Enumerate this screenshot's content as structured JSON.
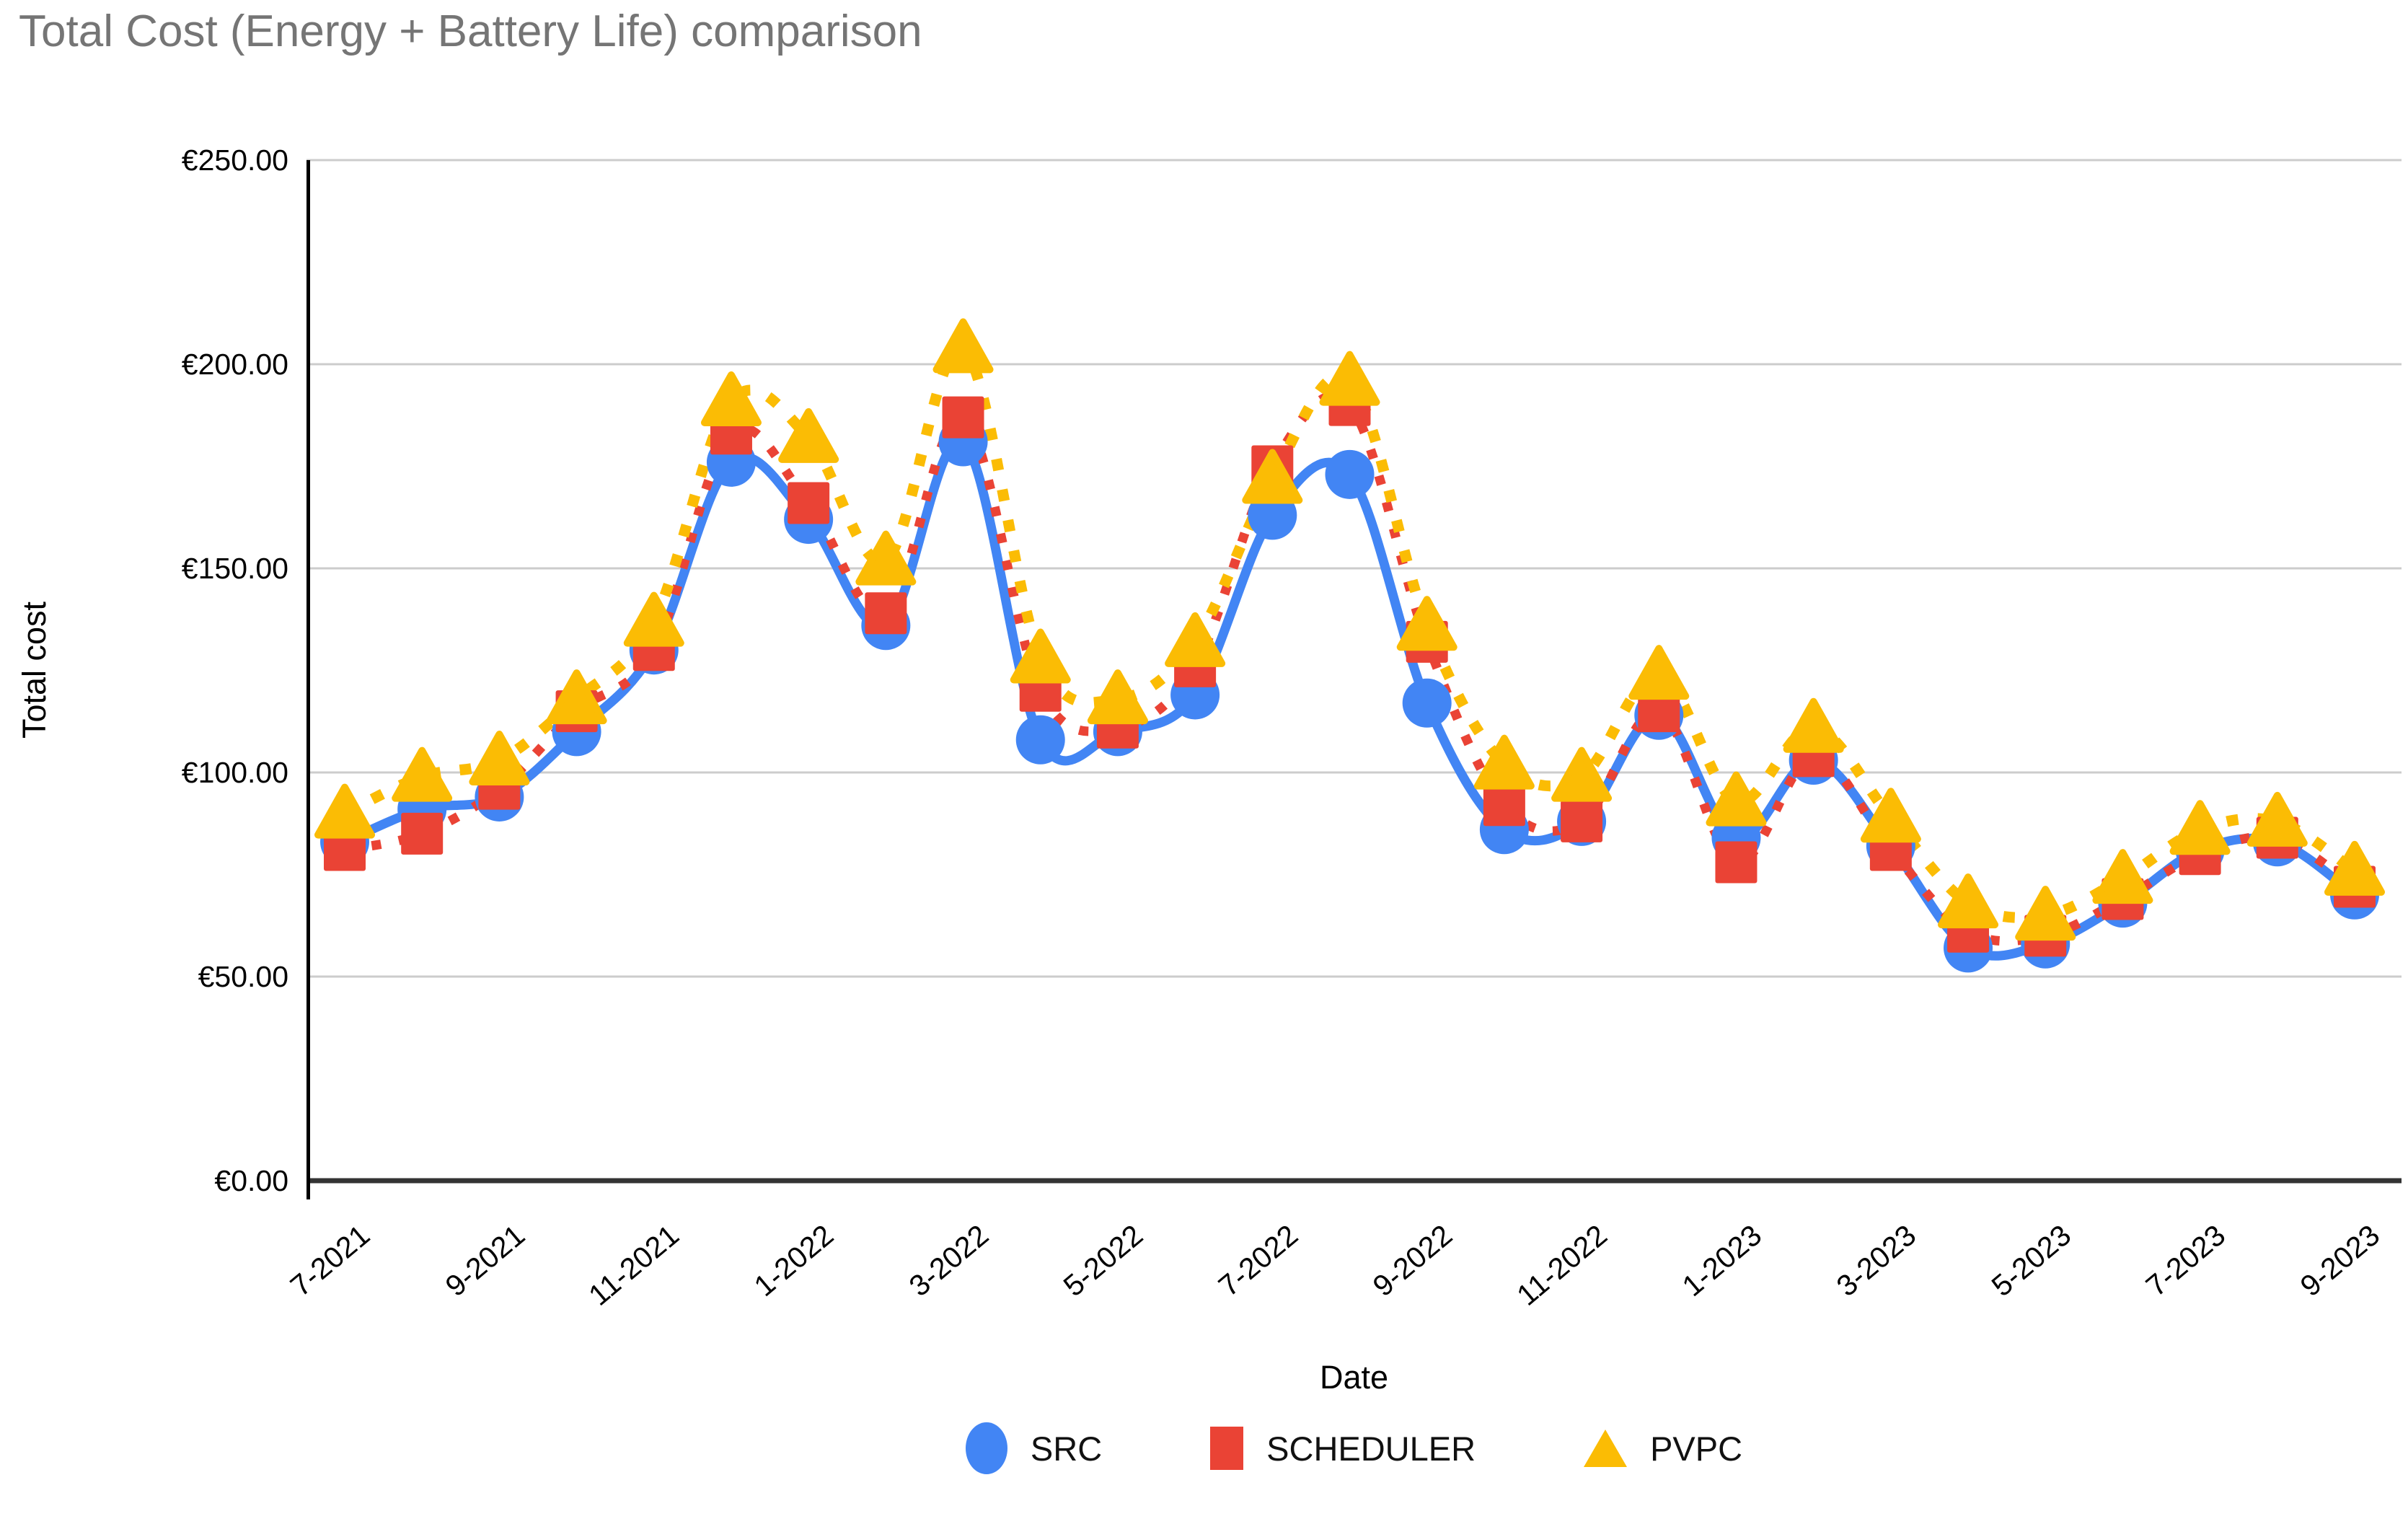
{
  "title": "Total Cost (Energy + Battery Life) comparison",
  "x_axis_title": "Date",
  "y_axis_title": "Total cost",
  "colors": {
    "src": "#4285F4",
    "scheduler": "#EA4335",
    "pvpc": "#FBBC04",
    "gridline": "#CCCCCC",
    "baseline": "#333333",
    "axis_line": "#000000",
    "title_text": "#757575",
    "label_text": "#000000"
  },
  "legend": [
    {
      "label": "SRC",
      "marker": "circle",
      "color": "#4285F4"
    },
    {
      "label": "SCHEDULER",
      "marker": "square",
      "color": "#EA4335"
    },
    {
      "label": "PVPC",
      "marker": "triangle",
      "color": "#FBBC04"
    }
  ],
  "chart_data": {
    "type": "line",
    "title": "Total Cost (Energy + Battery Life) comparison",
    "xlabel": "Date",
    "ylabel": "Total cost",
    "ylim": [
      0,
      250
    ],
    "grid": true,
    "legend_position": "bottom",
    "categories": [
      "7-2021",
      "8-2021",
      "9-2021",
      "10-2021",
      "11-2021",
      "12-2021",
      "1-2022",
      "2-2022",
      "3-2022",
      "4-2022",
      "5-2022",
      "6-2022",
      "7-2022",
      "8-2022",
      "9-2022",
      "10-2022",
      "11-2022",
      "12-2022",
      "1-2023",
      "2-2023",
      "3-2023",
      "4-2023",
      "5-2023",
      "6-2023",
      "7-2023",
      "8-2023",
      "9-2023"
    ],
    "x_tick_labels": [
      "7-2021",
      "9-2021",
      "11-2021",
      "1-2022",
      "3-2022",
      "5-2022",
      "7-2022",
      "9-2022",
      "11-2022",
      "1-2023",
      "3-2023",
      "5-2023",
      "7-2023",
      "9-2023"
    ],
    "x_tick_every": 2,
    "y_ticks": {
      "values": [
        0,
        50,
        100,
        150,
        200,
        250
      ],
      "labels": [
        "€0.00",
        "€50.00",
        "€100.00",
        "€150.00",
        "€200.00",
        "€250.00"
      ]
    },
    "series": [
      {
        "name": "SRC",
        "marker": "circle",
        "line": "solid",
        "color": "#4285F4",
        "values": [
          83,
          91,
          94,
          110,
          130,
          176,
          162,
          136,
          181,
          108,
          110,
          119,
          163,
          173,
          117,
          86,
          88,
          114,
          84,
          103,
          82,
          57,
          58,
          68,
          81,
          83,
          70
        ]
      },
      {
        "name": "SCHEDULER",
        "marker": "square",
        "line": "dotted",
        "color": "#EA4335",
        "values": [
          81,
          85,
          96,
          115,
          130,
          183,
          166,
          139,
          187,
          120,
          111,
          126,
          175,
          190,
          132,
          92,
          88,
          115,
          78,
          104,
          81,
          61,
          60,
          69,
          80,
          84,
          72
        ]
      },
      {
        "name": "PVPC",
        "marker": "triangle",
        "line": "dotted",
        "color": "#FBBC04",
        "values": [
          90,
          99,
          103,
          118,
          137,
          191,
          182,
          152,
          204,
          128,
          118,
          132,
          172,
          196,
          136,
          102,
          99,
          124,
          93,
          111,
          89,
          68,
          65,
          74,
          86,
          88,
          76
        ]
      }
    ]
  }
}
